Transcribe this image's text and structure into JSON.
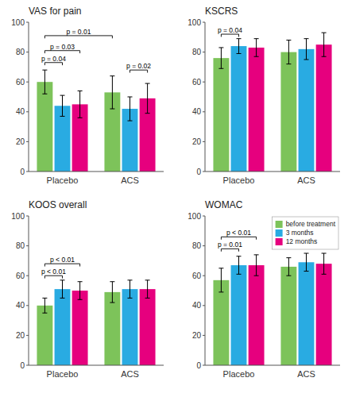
{
  "chart_data": [
    {
      "type": "bar",
      "title": "VAS for pain",
      "categories": [
        "Placebo",
        "ACS"
      ],
      "series": [
        {
          "color": "#7dc35a",
          "values": [
            60,
            53
          ],
          "errors": [
            8,
            11
          ]
        },
        {
          "color": "#29abe2",
          "values": [
            44,
            42
          ],
          "errors": [
            7,
            8
          ]
        },
        {
          "color": "#e6007e",
          "values": [
            45,
            49
          ],
          "errors": [
            9,
            10
          ]
        }
      ],
      "ylim": [
        0,
        100
      ],
      "yticks": [
        0,
        20,
        40,
        60,
        80,
        100
      ],
      "annotations": [
        {
          "text": "p = 0.04",
          "y": 73,
          "from": {
            "category": 0,
            "series": 0
          },
          "to": {
            "category": 0,
            "series": 1
          }
        },
        {
          "text": "p = 0.03",
          "y": 81,
          "from": {
            "category": 0,
            "series": 0
          },
          "to": {
            "category": 0,
            "series": 2
          }
        },
        {
          "text": "p = 0.01",
          "y": 91,
          "from": {
            "category": 0,
            "series": 0
          },
          "to": {
            "category": 1,
            "series": 0
          }
        },
        {
          "text": "p = 0.02",
          "y": 68,
          "from": {
            "category": 1,
            "series": 1
          },
          "to": {
            "category": 1,
            "series": 2
          }
        }
      ]
    },
    {
      "type": "bar",
      "title": "KSCRS",
      "categories": [
        "Placebo",
        "ACS"
      ],
      "series": [
        {
          "color": "#7dc35a",
          "values": [
            76,
            80
          ],
          "errors": [
            7,
            8
          ]
        },
        {
          "color": "#29abe2",
          "values": [
            84,
            82
          ],
          "errors": [
            5,
            7
          ]
        },
        {
          "color": "#e6007e",
          "values": [
            83,
            85
          ],
          "errors": [
            6,
            8
          ]
        }
      ],
      "ylim": [
        0,
        100
      ],
      "yticks": [
        0,
        20,
        40,
        60,
        80,
        100
      ],
      "annotations": [
        {
          "text": "p = 0.04",
          "y": 92,
          "from": {
            "category": 0,
            "series": 0
          },
          "to": {
            "category": 0,
            "series": 1
          }
        }
      ]
    },
    {
      "type": "bar",
      "title": "KOOS overall",
      "categories": [
        "Placebo",
        "ACS"
      ],
      "series": [
        {
          "color": "#7dc35a",
          "values": [
            40,
            49
          ],
          "errors": [
            5,
            7
          ]
        },
        {
          "color": "#29abe2",
          "values": [
            51,
            51
          ],
          "errors": [
            6,
            6
          ]
        },
        {
          "color": "#e6007e",
          "values": [
            50,
            51
          ],
          "errors": [
            6,
            6
          ]
        }
      ],
      "ylim": [
        0,
        100
      ],
      "yticks": [
        0,
        20,
        40,
        60,
        80,
        100
      ],
      "annotations": [
        {
          "text": "p < 0.01",
          "y": 60,
          "from": {
            "category": 0,
            "series": 0
          },
          "to": {
            "category": 0,
            "series": 1
          }
        },
        {
          "text": "p < 0.01",
          "y": 68,
          "from": {
            "category": 0,
            "series": 0
          },
          "to": {
            "category": 0,
            "series": 2
          }
        }
      ]
    },
    {
      "type": "bar",
      "title": "WOMAC",
      "categories": [
        "Placebo",
        "ACS"
      ],
      "series": [
        {
          "name": "before treatment",
          "color": "#7dc35a",
          "values": [
            57,
            66
          ],
          "errors": [
            8,
            6
          ]
        },
        {
          "name": "3 months",
          "color": "#29abe2",
          "values": [
            67,
            69
          ],
          "errors": [
            6,
            6
          ]
        },
        {
          "name": "12 months",
          "color": "#e6007e",
          "values": [
            67,
            68
          ],
          "errors": [
            7,
            7
          ]
        }
      ],
      "ylim": [
        0,
        100
      ],
      "yticks": [
        0,
        20,
        40,
        60,
        80,
        100
      ],
      "legend": "upper right",
      "annotations": [
        {
          "text": "p = 0.01",
          "y": 78,
          "from": {
            "category": 0,
            "series": 0
          },
          "to": {
            "category": 0,
            "series": 1
          }
        },
        {
          "text": "p < 0.01",
          "y": 86,
          "from": {
            "category": 0,
            "series": 0
          },
          "to": {
            "category": 0,
            "series": 2
          }
        }
      ]
    }
  ]
}
